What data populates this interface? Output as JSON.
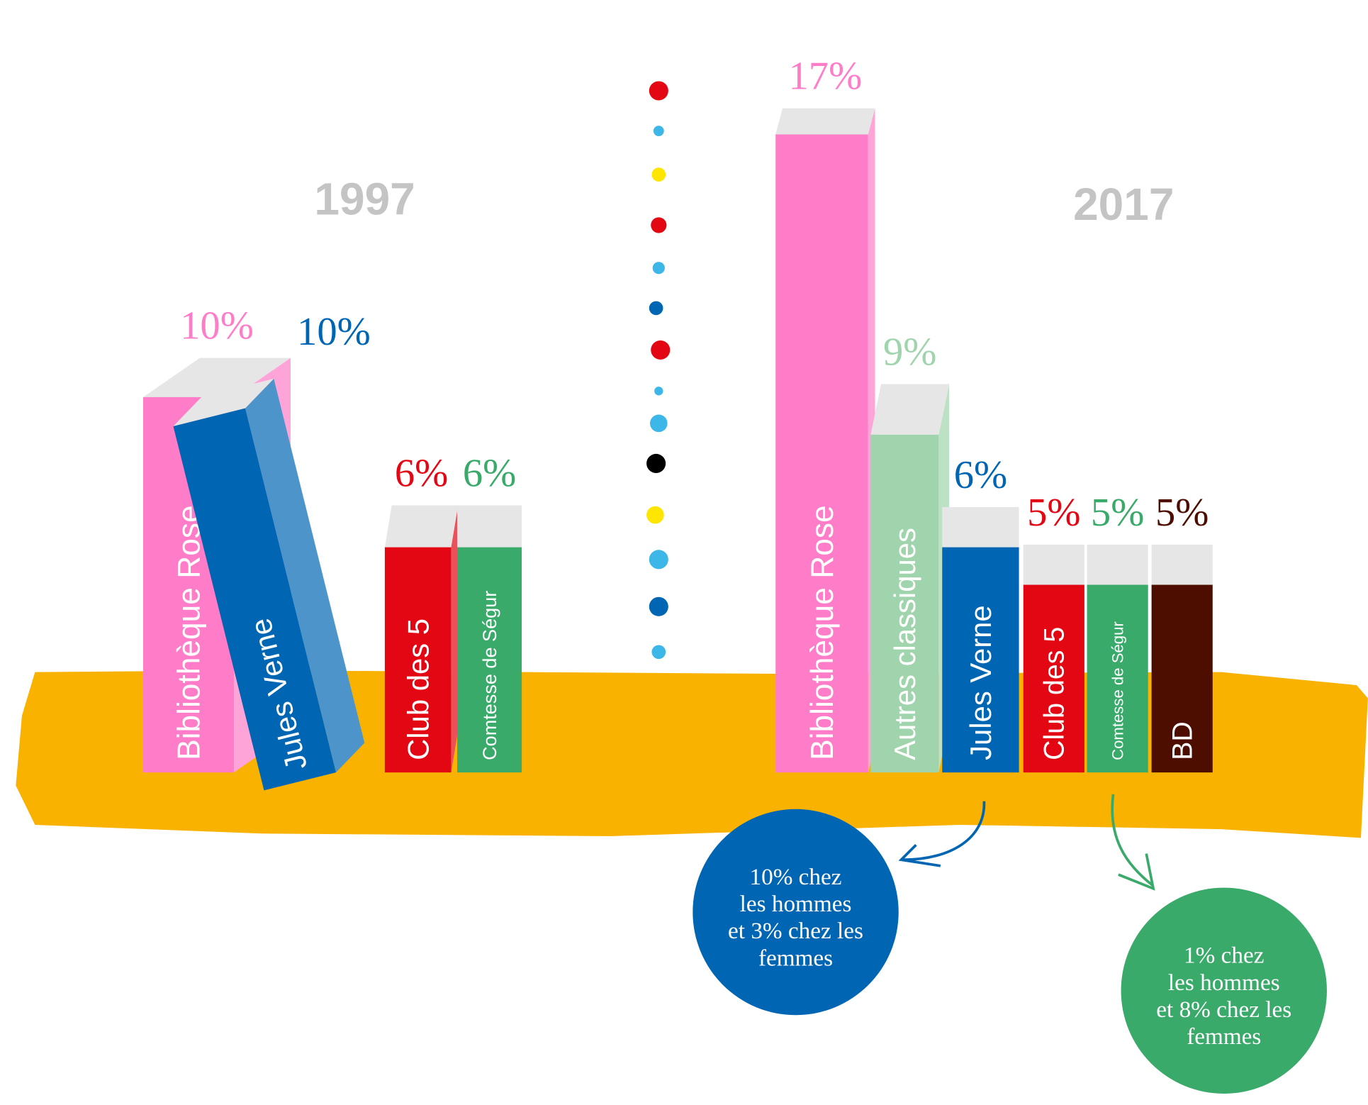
{
  "chart_data": [
    {
      "type": "book-bar",
      "title": "1997",
      "categories": [
        "Bibliothèque Rose",
        "Jules Verne",
        "Club des 5",
        "Comtesse de Ségur"
      ],
      "values": [
        10,
        10,
        6,
        6
      ],
      "value_labels": [
        "10%",
        "10%",
        "6%",
        "6%"
      ],
      "colors": [
        "#ff7dc8",
        "#0066b3",
        "#e30613",
        "#3aaa6a"
      ]
    },
    {
      "type": "book-bar",
      "title": "2017",
      "categories": [
        "Bibliothèque Rose",
        "Autres classiques",
        "Jules Verne",
        "Club des 5",
        "Comtesse de Ségur",
        "BD"
      ],
      "values": [
        17,
        9,
        6,
        5,
        5,
        5
      ],
      "value_labels": [
        "17%",
        "9%",
        "6%",
        "5%",
        "5%",
        "5%"
      ],
      "colors": [
        "#ff7dc8",
        "#9fd4ac",
        "#0066b3",
        "#e30613",
        "#3aaa6a",
        "#4d0e00"
      ],
      "annotations": [
        {
          "lines": [
            "10% chez",
            "les hommes",
            "et 3% chez les",
            "femmes"
          ],
          "color": "#0066b3"
        },
        {
          "lines": [
            "1% chez",
            "les hommes",
            "et 8% chez les",
            "femmes"
          ],
          "color": "#3aaa6a"
        }
      ]
    }
  ]
}
